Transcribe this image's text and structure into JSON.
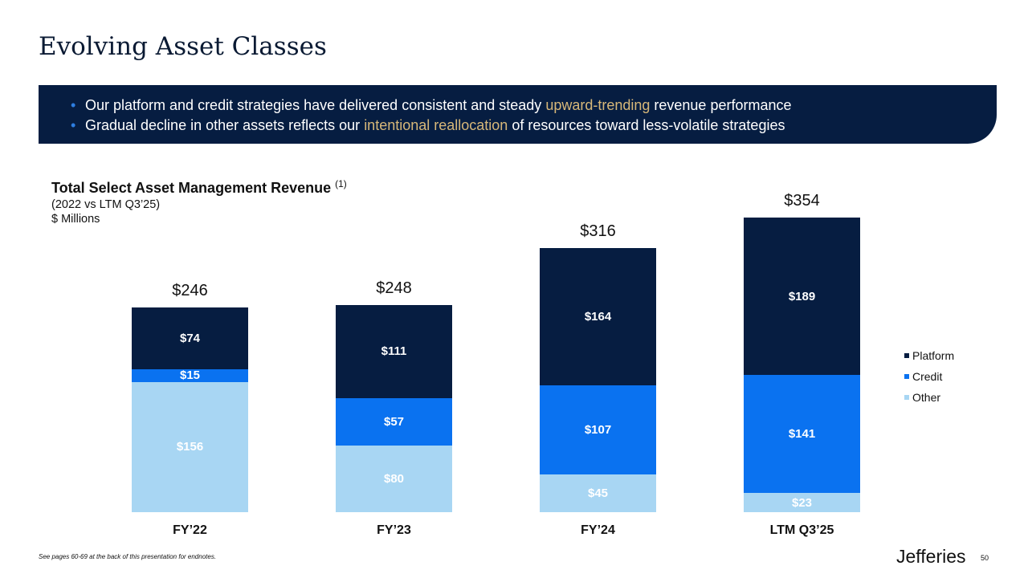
{
  "title": "Evolving Asset Classes",
  "bullets": [
    {
      "pre": "Our platform and credit strategies have delivered consistent and steady ",
      "hl": "upward-trending",
      "post": " revenue performance"
    },
    {
      "pre": "Gradual decline in other assets reflects our ",
      "hl": "intentional reallocation",
      "post": " of resources toward less-volatile strategies"
    }
  ],
  "chart_data": {
    "type": "bar",
    "stacked": true,
    "title": "Total Select Asset Management Revenue",
    "title_note": "(1)",
    "subtitle": "(2022 vs LTM Q3’25)",
    "ylabel": "$ Millions",
    "categories": [
      "FY’22",
      "FY’23",
      "FY’24",
      "LTM Q3’25"
    ],
    "totals": [
      246,
      248,
      316,
      354
    ],
    "total_labels": [
      "$246",
      "$248",
      "$316",
      "$354"
    ],
    "series": [
      {
        "name": "Other",
        "color": "#a8d6f3",
        "values": [
          156,
          80,
          45,
          23
        ],
        "labels": [
          "$156",
          "$80",
          "$45",
          "$23"
        ]
      },
      {
        "name": "Credit",
        "color": "#0a72f0",
        "values": [
          15,
          57,
          107,
          141
        ],
        "labels": [
          "$15",
          "$57",
          "$107",
          "$141"
        ]
      },
      {
        "name": "Platform",
        "color": "#061d41",
        "values": [
          74,
          111,
          164,
          189
        ],
        "labels": [
          "$74",
          "$111",
          "$164",
          "$189"
        ]
      }
    ],
    "legend_order": [
      "Platform",
      "Credit",
      "Other"
    ],
    "legend": "right",
    "grid": false
  },
  "footnote": "See pages 60-69 at the back of this presentation for endnotes.",
  "logo": "Jefferies",
  "page": "50"
}
